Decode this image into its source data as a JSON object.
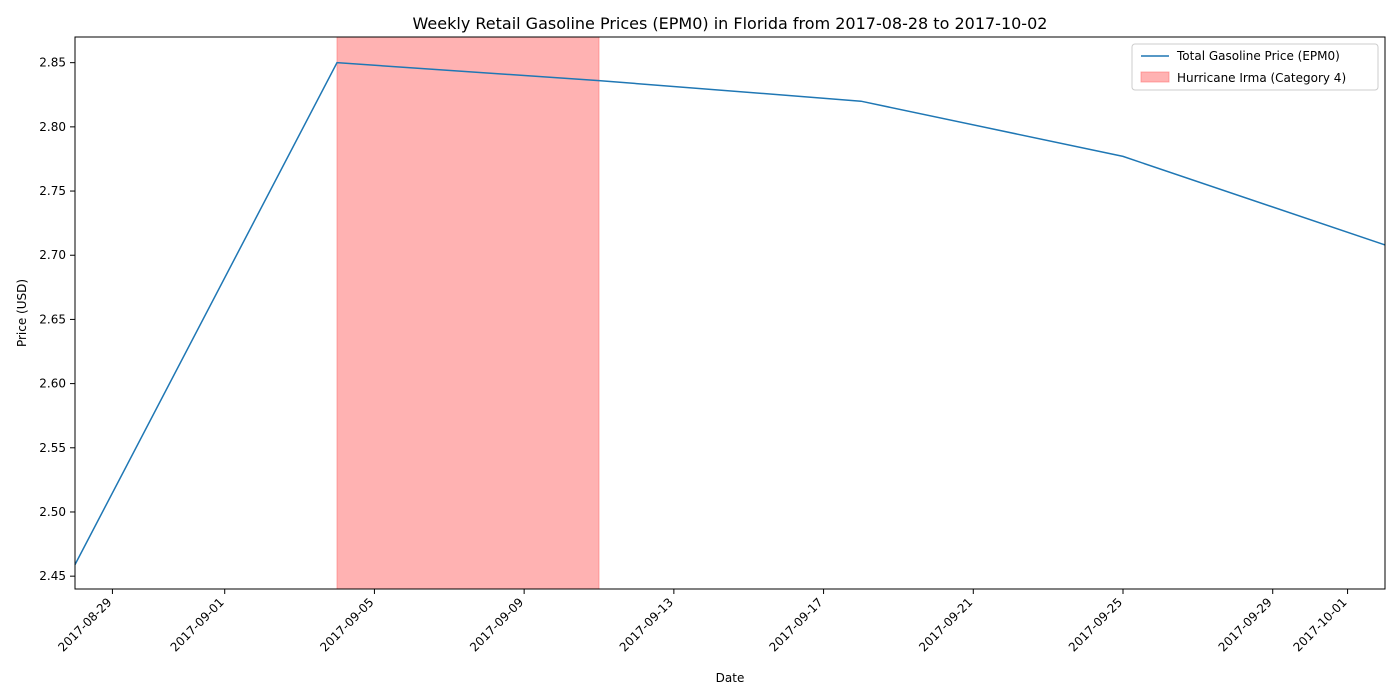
{
  "chart_data": {
    "type": "line",
    "title": "Weekly Retail Gasoline Prices (EPM0) in Florida from 2017-08-28 to 2017-10-02",
    "xlabel": "Date",
    "ylabel": "Price (USD)",
    "x": [
      "2017-08-28",
      "2017-09-04",
      "2017-09-11",
      "2017-09-18",
      "2017-09-25",
      "2017-10-02"
    ],
    "series": [
      {
        "name": "Total Gasoline Price (EPM0)",
        "color": "#1f77b4",
        "values": [
          2.459,
          2.85,
          2.836,
          2.82,
          2.777,
          2.708
        ]
      }
    ],
    "shaded_regions": [
      {
        "name": "Hurricane Irma (Category 4)",
        "start": "2017-09-04",
        "end": "2017-09-11",
        "color": "#ff6666"
      }
    ],
    "xlim": [
      "2017-08-28",
      "2017-10-02"
    ],
    "ylim": [
      2.44,
      2.87
    ],
    "x_ticks": [
      "2017-08-29",
      "2017-09-01",
      "2017-09-05",
      "2017-09-09",
      "2017-09-13",
      "2017-09-17",
      "2017-09-21",
      "2017-09-25",
      "2017-09-29",
      "2017-10-01"
    ],
    "y_ticks": [
      "2.45",
      "2.50",
      "2.55",
      "2.60",
      "2.65",
      "2.70",
      "2.75",
      "2.80",
      "2.85"
    ],
    "legend": "top-right",
    "grid": false
  }
}
